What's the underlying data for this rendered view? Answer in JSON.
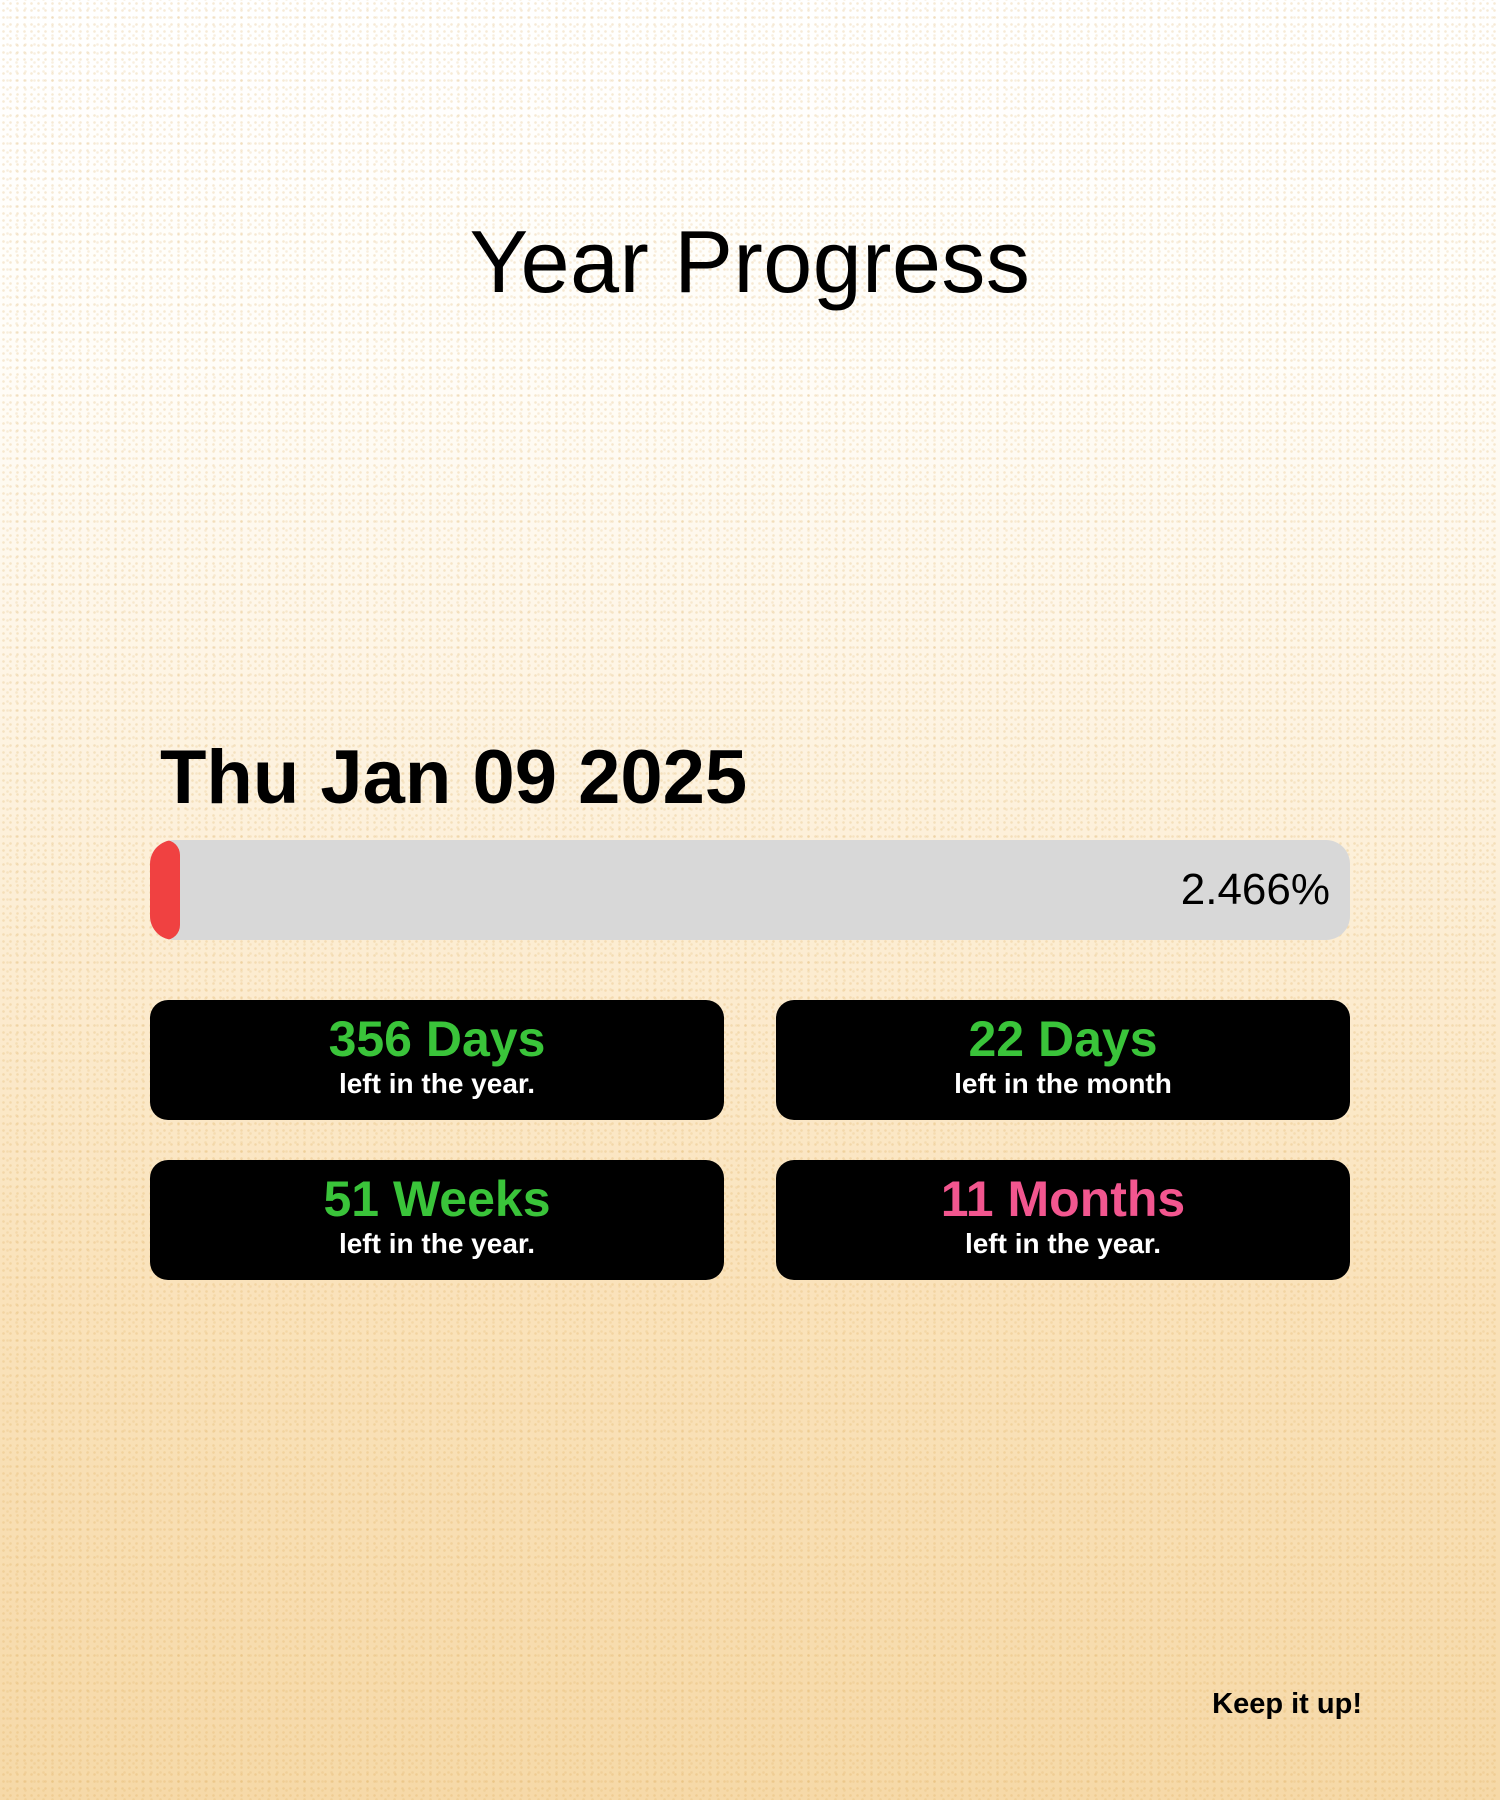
{
  "title": "Year Progress",
  "date": "Thu Jan 09 2025",
  "progress": {
    "percent_text": "2.466%",
    "fraction": 0.02466,
    "color": "#f04141"
  },
  "stats": [
    {
      "value": "356 Days",
      "caption": "left in the year.",
      "color": "#3ac43a"
    },
    {
      "value": "22 Days",
      "caption": "left in the month",
      "color": "#3ac43a"
    },
    {
      "value": "51 Weeks",
      "caption": "left in the year.",
      "color": "#3ac43a"
    },
    {
      "value": "11 Months",
      "caption": "left in the year.",
      "color": "#f2568f"
    }
  ],
  "footer": "Keep it up!"
}
